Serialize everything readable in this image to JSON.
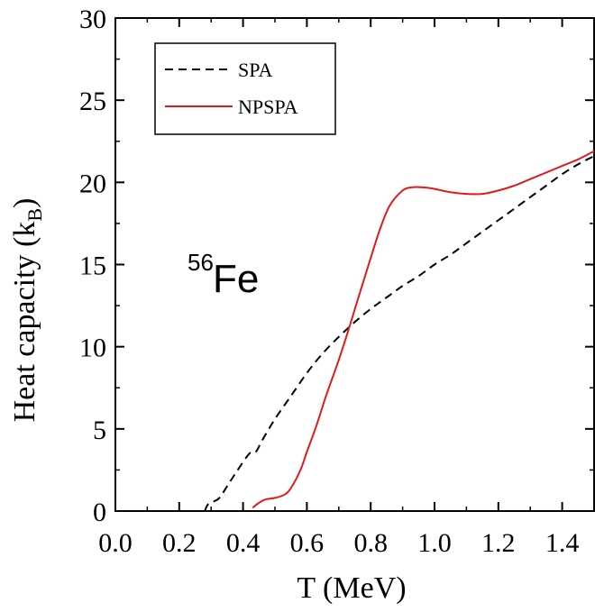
{
  "chart_data": {
    "type": "line",
    "xlabel": "T  (MeV)",
    "ylabel": "Heat capacity (k",
    "ylabel_subscript": "B",
    "ylabel_close": ")",
    "xlim": [
      0.0,
      1.5
    ],
    "ylim": [
      0,
      30
    ],
    "x_ticks": [
      "0.0",
      "0.2",
      "0.4",
      "0.6",
      "0.8",
      "1.0",
      "1.2",
      "1.4"
    ],
    "y_ticks": [
      "0",
      "5",
      "10",
      "15",
      "20",
      "25",
      "30"
    ],
    "grid": false,
    "legend_position": "top-left",
    "annotation": {
      "superscript": "56",
      "text": "Fe"
    },
    "series": [
      {
        "name": "SPA",
        "style": "dashed",
        "color": "#000000",
        "x": [
          0.28,
          0.29,
          0.31,
          0.32,
          0.33,
          0.35,
          0.38,
          0.42,
          0.44,
          0.46,
          0.5,
          0.55,
          0.6,
          0.65,
          0.7,
          0.75,
          0.8,
          0.85,
          0.9,
          0.95,
          1.0,
          1.05,
          1.1,
          1.15,
          1.2,
          1.25,
          1.3,
          1.35,
          1.4,
          1.45,
          1.5
        ],
        "y": [
          0.0,
          0.4,
          0.6,
          0.7,
          0.9,
          1.5,
          2.4,
          3.5,
          3.6,
          4.3,
          5.6,
          7.0,
          8.4,
          9.6,
          10.6,
          11.5,
          12.3,
          13.0,
          13.7,
          14.3,
          15.0,
          15.6,
          16.3,
          17.0,
          17.7,
          18.4,
          19.1,
          19.8,
          20.5,
          21.1,
          21.6
        ]
      },
      {
        "name": "NPSPA",
        "style": "solid",
        "color": "#e31a1c",
        "x": [
          0.43,
          0.45,
          0.47,
          0.5,
          0.53,
          0.55,
          0.58,
          0.6,
          0.63,
          0.66,
          0.7,
          0.73,
          0.76,
          0.8,
          0.83,
          0.86,
          0.9,
          0.93,
          0.96,
          1.0,
          1.05,
          1.1,
          1.15,
          1.2,
          1.25,
          1.3,
          1.35,
          1.4,
          1.45,
          1.5
        ],
        "y": [
          0.2,
          0.5,
          0.7,
          0.8,
          1.0,
          1.4,
          2.5,
          3.6,
          5.2,
          7.0,
          9.2,
          11.0,
          12.9,
          15.4,
          17.2,
          18.6,
          19.5,
          19.7,
          19.7,
          19.6,
          19.4,
          19.3,
          19.3,
          19.5,
          19.8,
          20.2,
          20.6,
          21.0,
          21.4,
          21.9
        ]
      }
    ]
  }
}
